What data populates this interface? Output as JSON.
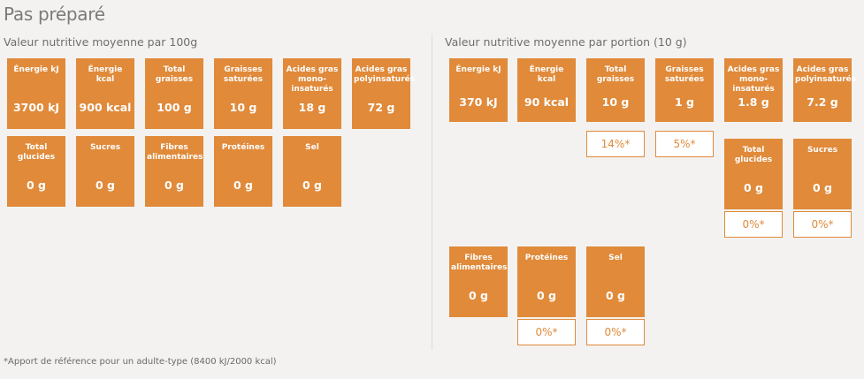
{
  "page_title": "Pas préparé",
  "per100": {
    "heading": "Valeur nutritive moyenne par  100g",
    "tiles": [
      {
        "label": "Énergie kJ",
        "value": "3700 kJ"
      },
      {
        "label": "Énergie kcal",
        "value": "900 kcal"
      },
      {
        "label": "Total graisses",
        "value": "100 g"
      },
      {
        "label": "Graisses saturées",
        "value": "10 g"
      },
      {
        "label": "Acides gras mono-insaturés",
        "value": "18 g"
      },
      {
        "label": "Acides gras polyinsaturés",
        "value": "72 g"
      },
      {
        "label": "Total glucides",
        "value": "0 g"
      },
      {
        "label": "Sucres",
        "value": "0 g"
      },
      {
        "label": "Fibres alimentaires",
        "value": "0 g"
      },
      {
        "label": "Protéines",
        "value": "0 g"
      },
      {
        "label": "Sel",
        "value": "0 g"
      }
    ]
  },
  "portion": {
    "heading": "Valeur nutritive moyenne par portion (10 g)",
    "tiles": [
      {
        "label": "Énergie kJ",
        "value": "370 kJ",
        "pct": ""
      },
      {
        "label": "Énergie kcal",
        "value": "90 kcal",
        "pct": ""
      },
      {
        "label": "Total graisses",
        "value": "10 g",
        "pct": "14%*"
      },
      {
        "label": "Graisses saturées",
        "value": "1 g",
        "pct": "5%*"
      },
      {
        "label": "Acides gras mono-insaturés",
        "value": "1.8 g",
        "pct": ""
      },
      {
        "label": "Acides gras polyinsaturés",
        "value": "7.2 g",
        "pct": ""
      },
      {
        "label": "Total glucides",
        "value": "0 g",
        "pct": "0%*"
      },
      {
        "label": "Sucres",
        "value": "0 g",
        "pct": "0%*"
      },
      {
        "label": "Fibres alimentaires",
        "value": "0 g",
        "pct": ""
      },
      {
        "label": "Protéines",
        "value": "0 g",
        "pct": "0%*"
      },
      {
        "label": "Sel",
        "value": "0 g",
        "pct": "0%*"
      }
    ]
  },
  "footnote": "*Apport de référence pour un adulte-type (8400 kJ/2000 kcal)"
}
